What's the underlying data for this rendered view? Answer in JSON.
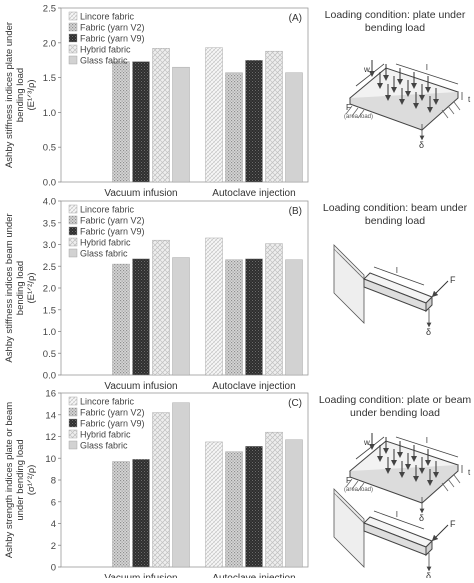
{
  "panels": [
    {
      "chart_data": {
        "type": "bar",
        "panel_label": "(A)",
        "ylabel_lines": [
          "Ashby stiffness indices plate under",
          "bending load",
          "(E¹ᐟ³/ρ)"
        ],
        "categories": [
          "Vacuum infusion",
          "Autoclave injection"
        ],
        "ylim": [
          0,
          2.5
        ],
        "yticks": [
          "0.0",
          "0.5",
          "1.0",
          "1.5",
          "2.0",
          "2.5"
        ],
        "series": [
          {
            "name": "Lincore fabric",
            "values": [
              null,
              1.93
            ]
          },
          {
            "name": "Fabric (yarn V2)",
            "values": [
              1.73,
              1.57
            ]
          },
          {
            "name": "Fabric (yarn V9)",
            "values": [
              1.73,
              1.75
            ]
          },
          {
            "name": "Hybrid fabric",
            "values": [
              1.92,
              1.88
            ]
          },
          {
            "name": "Glass fabric",
            "values": [
              1.65,
              1.57
            ]
          }
        ]
      },
      "loading_title": [
        "Loading condition: plate under",
        "bending load"
      ],
      "sketch": "plate"
    },
    {
      "chart_data": {
        "type": "bar",
        "panel_label": "(B)",
        "ylabel_lines": [
          "Ashby stiffness indices beam under",
          "bending load",
          "(E¹ᐟ²/ρ)"
        ],
        "categories": [
          "Vacuum infusion",
          "Autoclave injection"
        ],
        "ylim": [
          0,
          4.0
        ],
        "yticks": [
          "0.0",
          "0.5",
          "1.0",
          "1.5",
          "2.0",
          "2.5",
          "3.0",
          "3.5",
          "4.0"
        ],
        "series": [
          {
            "name": "Lincore fabric",
            "values": [
              null,
              3.15
            ]
          },
          {
            "name": "Fabric (yarn V2)",
            "values": [
              2.55,
              2.65
            ]
          },
          {
            "name": "Fabric (yarn V9)",
            "values": [
              2.67,
              2.67
            ]
          },
          {
            "name": "Hybrid fabric",
            "values": [
              3.1,
              3.02
            ]
          },
          {
            "name": "Glass fabric",
            "values": [
              2.7,
              2.65
            ]
          }
        ]
      },
      "loading_title": [
        "Loading condition: beam under",
        "bending load"
      ],
      "sketch": "beam"
    },
    {
      "chart_data": {
        "type": "bar",
        "panel_label": "(C)",
        "ylabel_lines": [
          "Ashby strength indices plate or beam",
          "under bending load",
          "(σ¹ᐟ²/ρ)"
        ],
        "categories": [
          "Vacuum infusion",
          "Autoclave injection"
        ],
        "ylim": [
          0,
          16
        ],
        "yticks": [
          "0",
          "2",
          "4",
          "6",
          "8",
          "10",
          "12",
          "14",
          "16"
        ],
        "series": [
          {
            "name": "Lincore fabric",
            "values": [
              null,
              11.5
            ]
          },
          {
            "name": "Fabric (yarn V2)",
            "values": [
              9.7,
              10.6
            ]
          },
          {
            "name": "Fabric (yarn V9)",
            "values": [
              9.9,
              11.1
            ]
          },
          {
            "name": "Hybrid fabric",
            "values": [
              14.2,
              12.4
            ]
          },
          {
            "name": "Glass fabric",
            "values": [
              15.1,
              11.7
            ]
          }
        ]
      },
      "loading_title": [
        "Loading condition: plate or beam",
        "under bending load"
      ],
      "sketch": "both"
    }
  ],
  "sketch_labels": {
    "w": "w",
    "l": "l",
    "t": "t",
    "F": "F",
    "area_load": "(area load)",
    "delta": "δ"
  },
  "colors": {
    "Lincore fabric": "#f4f4f4",
    "Fabric (yarn V2)": "#bdbdbd",
    "Fabric (yarn V9)": "#3a3a3a",
    "Hybrid fabric": "#e4e4e4",
    "Glass fabric": "#d2d2d2"
  }
}
